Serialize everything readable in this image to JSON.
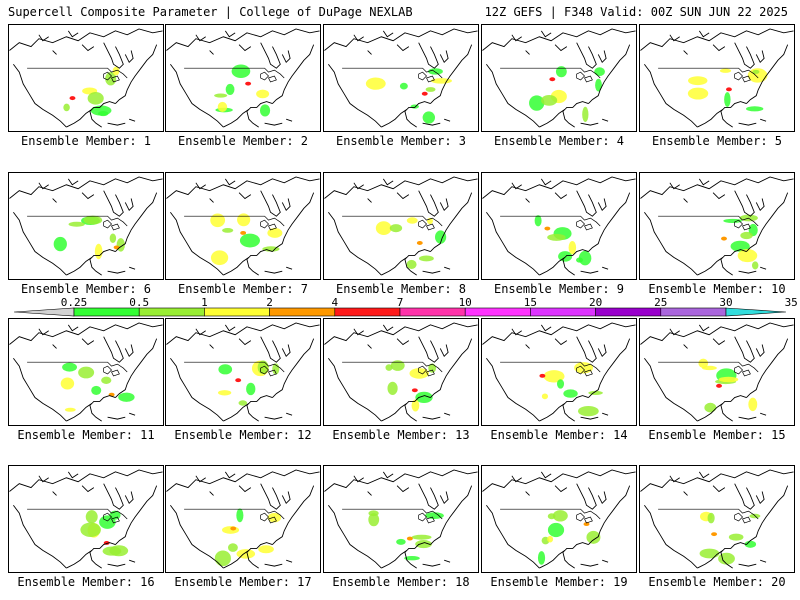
{
  "header": {
    "title_left": "Supercell Composite Parameter | College of DuPage NEXLAB",
    "title_right": "12Z GEFS | F348 Valid: 00Z SUN JUN 22 2025"
  },
  "panels": [
    {
      "label": "Ensemble Member: 1"
    },
    {
      "label": "Ensemble Member: 2"
    },
    {
      "label": "Ensemble Member: 3"
    },
    {
      "label": "Ensemble Member: 4"
    },
    {
      "label": "Ensemble Member: 5"
    },
    {
      "label": "Ensemble Member: 6"
    },
    {
      "label": "Ensemble Member: 7"
    },
    {
      "label": "Ensemble Member: 8"
    },
    {
      "label": "Ensemble Member: 9"
    },
    {
      "label": "Ensemble Member: 10"
    },
    {
      "label": "Ensemble Member: 11"
    },
    {
      "label": "Ensemble Member: 12"
    },
    {
      "label": "Ensemble Member: 13"
    },
    {
      "label": "Ensemble Member: 14"
    },
    {
      "label": "Ensemble Member: 15"
    },
    {
      "label": "Ensemble Member: 16"
    },
    {
      "label": "Ensemble Member: 17"
    },
    {
      "label": "Ensemble Member: 18"
    },
    {
      "label": "Ensemble Member: 19"
    },
    {
      "label": "Ensemble Member: 20"
    }
  ],
  "colorbar": {
    "ticks": [
      "0.25",
      "0.5",
      "1",
      "2",
      "4",
      "7",
      "10",
      "15",
      "20",
      "25",
      "30",
      "35"
    ],
    "colors": [
      "#d3d3d3",
      "#33ff33",
      "#99ee33",
      "#ffff33",
      "#ff9900",
      "#ff1a1a",
      "#ff33aa",
      "#ff33ff",
      "#dd33ff",
      "#9900cc",
      "#aa66dd",
      "#33dddd"
    ]
  }
}
